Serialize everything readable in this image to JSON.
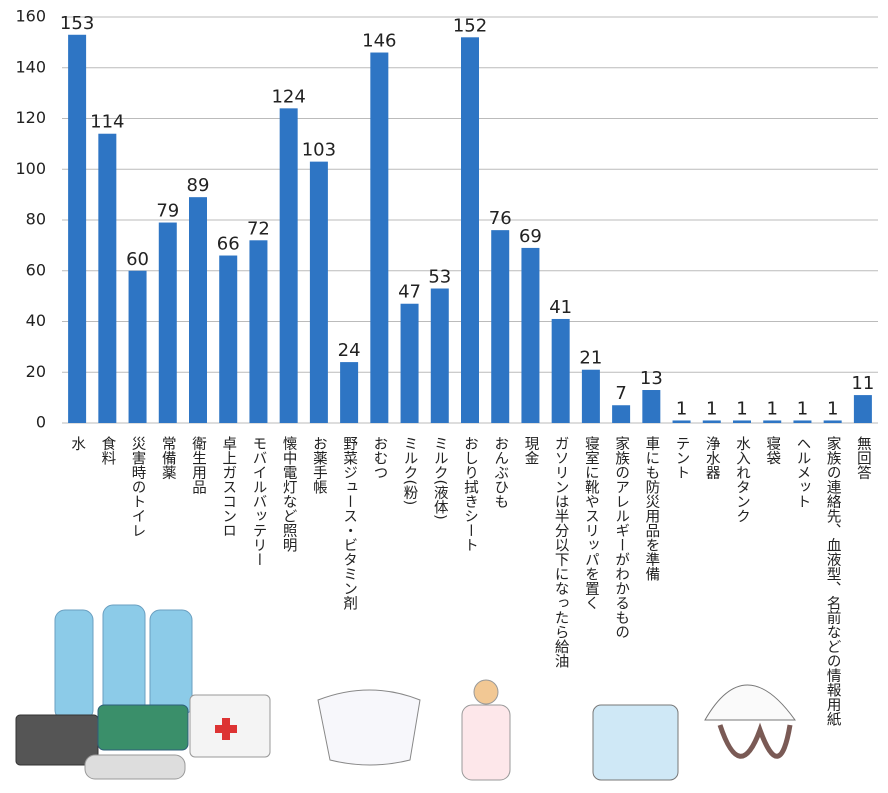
{
  "chart_data": {
    "type": "bar",
    "categories": [
      "水",
      "食料",
      "災害時のトイレ",
      "常備薬",
      "衛生用品",
      "卓上ガスコンロ",
      "モバイルバッテリー",
      "懐中電灯など照明",
      "お薬手帳",
      "野菜ジュース・ビタミン剤",
      "おむつ",
      "ミルク(粉)",
      "ミルク(液体)",
      "おしり拭きシート",
      "おんぶひも",
      "現金",
      "ガソリンは半分以下になったら給油",
      "寝室に靴やスリッパを置く",
      "家族のアレルギーがわかるもの",
      "車にも防災用品を準備",
      "テント",
      "浄水器",
      "水入れタンク",
      "寝袋",
      "ヘルメット",
      "家族の連絡先、血液型、名前などの情報用紙",
      "無回答"
    ],
    "values": [
      153,
      114,
      60,
      79,
      89,
      66,
      72,
      124,
      103,
      24,
      146,
      47,
      53,
      152,
      76,
      69,
      41,
      21,
      7,
      13,
      1,
      1,
      1,
      1,
      1,
      1,
      11
    ],
    "color": "#2e75c4",
    "ylim": [
      0,
      160
    ],
    "yticks": [
      0,
      20,
      40,
      60,
      80,
      100,
      120,
      140,
      160
    ],
    "grid": true
  }
}
